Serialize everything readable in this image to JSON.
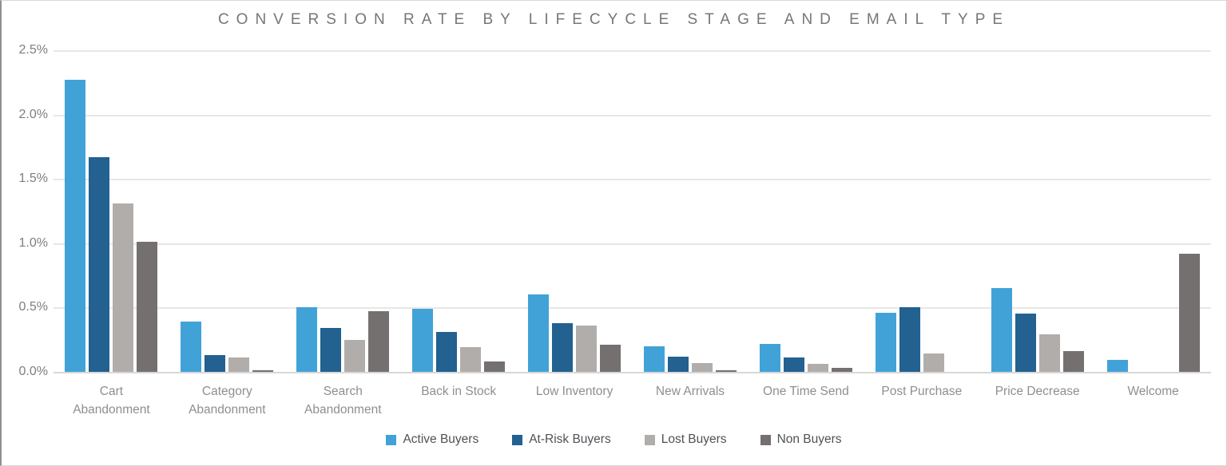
{
  "chart_data": {
    "type": "bar",
    "title": "CONVERSION RATE BY LIFECYCLE STAGE AND EMAIL TYPE",
    "categories": [
      "Cart Abandonment",
      "Category Abandonment",
      "Search Abandonment",
      "Back in Stock",
      "Low Inventory",
      "New Arrivals",
      "One Time Send",
      "Post Purchase",
      "Price Decrease",
      "Welcome"
    ],
    "series": [
      {
        "name": "Active Buyers",
        "color": "#41a2d8",
        "values": [
          2.27,
          0.39,
          0.5,
          0.49,
          0.6,
          0.2,
          0.22,
          0.46,
          0.65,
          0.09
        ]
      },
      {
        "name": "At-Risk Buyers",
        "color": "#226190",
        "values": [
          1.67,
          0.13,
          0.34,
          0.31,
          0.38,
          0.12,
          0.11,
          0.5,
          0.45,
          0
        ]
      },
      {
        "name": "Lost Buyers",
        "color": "#b1adab",
        "values": [
          1.31,
          0.11,
          0.25,
          0.19,
          0.36,
          0.07,
          0.06,
          0.14,
          0.29,
          0
        ]
      },
      {
        "name": "Non Buyers",
        "color": "#757070",
        "values": [
          1.01,
          0.01,
          0.47,
          0.08,
          0.21,
          0.01,
          0.03,
          0,
          0.16,
          0.92
        ]
      }
    ],
    "yaxis": {
      "min": 0,
      "max": 2.5,
      "ticks": [
        "2.5%",
        "2.0%",
        "1.5%",
        "1.0%",
        "0.5%",
        "0.0%"
      ]
    },
    "xlabel": "",
    "ylabel": "",
    "grid": true,
    "legend_position": "bottom"
  }
}
